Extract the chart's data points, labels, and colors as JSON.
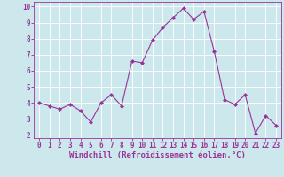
{
  "x": [
    0,
    1,
    2,
    3,
    4,
    5,
    6,
    7,
    8,
    9,
    10,
    11,
    12,
    13,
    14,
    15,
    16,
    17,
    18,
    19,
    20,
    21,
    22,
    23
  ],
  "y": [
    4.0,
    3.8,
    3.6,
    3.9,
    3.5,
    2.8,
    4.0,
    4.5,
    3.8,
    6.6,
    6.5,
    7.9,
    8.7,
    9.3,
    9.9,
    9.2,
    9.7,
    7.2,
    4.2,
    3.9,
    4.5,
    2.1,
    3.2,
    2.6
  ],
  "xlabel": "Windchill (Refroidissement éolien,°C)",
  "line_color": "#993399",
  "marker_color": "#993399",
  "bg_color": "#cce8ec",
  "grid_color": "#b0d8dc",
  "ylim_min": 1.8,
  "ylim_max": 10.3,
  "xlim_min": -0.5,
  "xlim_max": 23.5,
  "yticks": [
    2,
    3,
    4,
    5,
    6,
    7,
    8,
    9,
    10
  ],
  "xticks": [
    0,
    1,
    2,
    3,
    4,
    5,
    6,
    7,
    8,
    9,
    10,
    11,
    12,
    13,
    14,
    15,
    16,
    17,
    18,
    19,
    20,
    21,
    22,
    23
  ],
  "tick_label_fontsize": 5.5,
  "xlabel_fontsize": 6.5,
  "xlabel_color": "#993399",
  "tick_color": "#993399",
  "spine_color": "#993399",
  "line_width": 0.8,
  "marker_size": 2.0
}
